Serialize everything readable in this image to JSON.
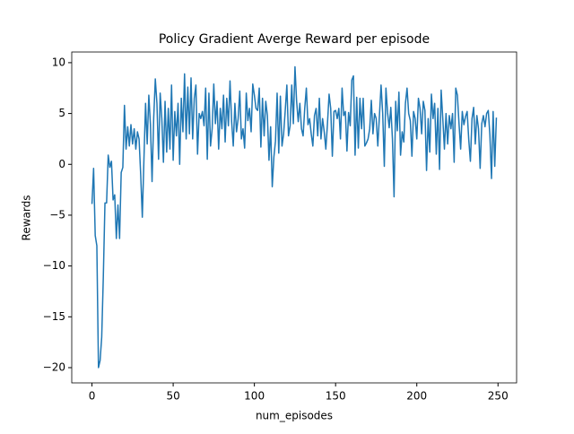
{
  "chart_data": {
    "type": "line",
    "title": "Policy Gradient Averge Reward per episode",
    "x_label": "num_episodes",
    "y_label": "Rewards",
    "series": [
      {
        "color": "#1f77b4",
        "values": [
          -3.9,
          -0.4,
          -7.0,
          -8.0,
          -20.0,
          -19.3,
          -17.0,
          -11.0,
          -3.8,
          -3.8,
          0.9,
          -0.3,
          0.3,
          -3.5,
          -3.0,
          -7.3,
          -4.0,
          -7.3,
          -0.8,
          -0.3,
          5.8,
          1.5,
          3.7,
          1.8,
          3.9,
          2.0,
          3.5,
          1.5,
          3.2,
          2.5,
          -1.0,
          -5.2,
          0.5,
          6.0,
          2.0,
          6.8,
          3.9,
          -1.7,
          4.5,
          8.4,
          6.0,
          0.5,
          7.0,
          4.5,
          0.2,
          6.2,
          1.2,
          5.5,
          1.5,
          7.8,
          0.4,
          5.2,
          2.8,
          6.0,
          0.0,
          6.5,
          3.2,
          8.9,
          2.5,
          7.6,
          3.0,
          8.5,
          2.5,
          6.5,
          7.8,
          1.0,
          5.0,
          4.5,
          5.2,
          3.8,
          7.5,
          0.5,
          7.0,
          1.8,
          3.5,
          7.9,
          4.0,
          6.2,
          1.5,
          5.5,
          3.5,
          6.8,
          2.2,
          6.5,
          3.8,
          8.2,
          4.2,
          1.8,
          6.0,
          3.2,
          4.5,
          7.2,
          2.5,
          3.5,
          1.6,
          7.0,
          4.3,
          5.5,
          3.2,
          7.9,
          6.8,
          5.5,
          5.3,
          7.5,
          1.7,
          6.5,
          2.8,
          6.2,
          4.8,
          0.4,
          3.7,
          -2.2,
          0.7,
          2.3,
          7.0,
          1.1,
          6.7,
          1.8,
          3.0,
          5.3,
          7.8,
          2.8,
          3.8,
          7.8,
          4.0,
          9.6,
          6.2,
          4.2,
          6.0,
          3.5,
          2.8,
          5.5,
          7.5,
          3.9,
          4.5,
          3.0,
          1.8,
          4.8,
          5.5,
          2.8,
          6.5,
          2.5,
          4.5,
          3.2,
          1.5,
          4.0,
          6.9,
          5.5,
          0.8,
          5.2,
          5.3,
          4.5,
          5.5,
          2.5,
          7.5,
          4.8,
          5.2,
          1.3,
          5.1,
          3.8,
          8.3,
          8.7,
          0.9,
          6.6,
          1.6,
          6.5,
          3.5,
          6.5,
          1.8,
          2.1,
          2.5,
          3.5,
          6.3,
          3.0,
          5.0,
          4.5,
          1.8,
          4.8,
          7.8,
          5.0,
          -0.2,
          7.5,
          5.1,
          3.6,
          5.6,
          2.5,
          -3.2,
          6.2,
          3.3,
          7.1,
          0.9,
          3.2,
          2.2,
          6.0,
          7.5,
          5.0,
          4.3,
          0.8,
          5.2,
          4.5,
          2.5,
          6.5,
          5.5,
          3.0,
          6.2,
          5.3,
          -0.6,
          4.5,
          1.2,
          6.9,
          4.5,
          6.0,
          1.0,
          5.5,
          -0.5,
          7.3,
          4.5,
          1.5,
          5.0,
          2.0,
          4.8,
          3.5,
          5.0,
          0.2,
          7.5,
          6.8,
          4.0,
          1.5,
          5.2,
          3.9,
          4.7,
          5.2,
          2.4,
          0.3,
          4.5,
          5.6,
          2.0,
          4.8,
          3.5,
          -0.4,
          4.0,
          4.8,
          3.7,
          5.0,
          5.3,
          2.9,
          -1.4,
          5.2,
          -0.2,
          4.6
        ]
      }
    ],
    "xlim": [
      -12.45,
      261.45
    ],
    "ylim": [
      -21.5,
      11.05
    ],
    "xticks": [
      0,
      50,
      100,
      150,
      200,
      250
    ],
    "yticks": [
      {
        "value": -20,
        "label": "−20"
      },
      {
        "value": -15,
        "label": "−15"
      },
      {
        "value": -10,
        "label": "−10"
      },
      {
        "value": -5,
        "label": "−5"
      },
      0,
      5,
      10
    ]
  }
}
